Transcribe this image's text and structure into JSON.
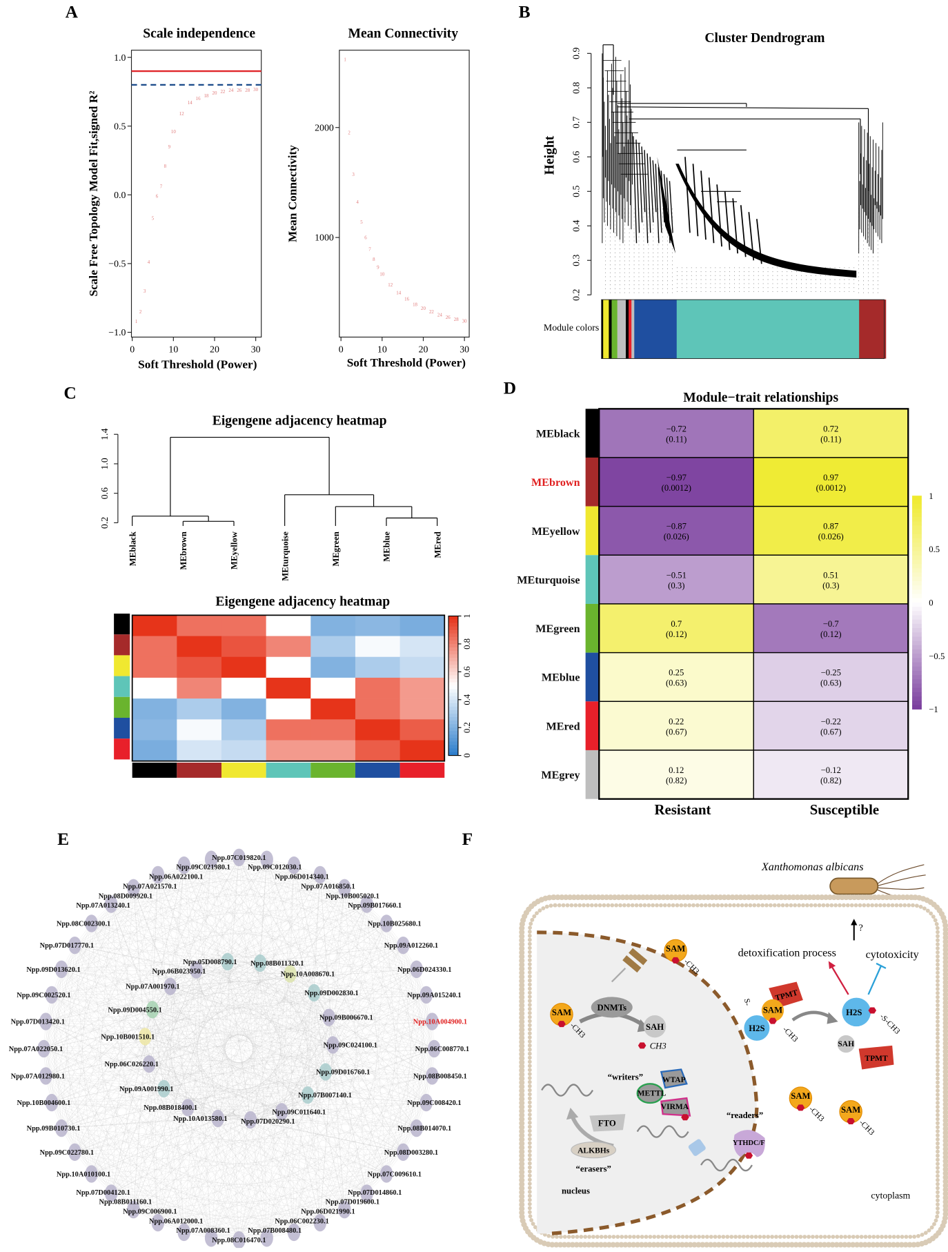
{
  "panel_letters": {
    "a": "A",
    "b": "B",
    "c": "C",
    "d": "D",
    "e": "E",
    "f": "F"
  },
  "chart_data": [
    {
      "id": "scale_independence",
      "type": "scatter",
      "title": "Scale independence",
      "xlabel": "Soft Threshold (Power)",
      "ylabel": "Scale Free Topology Model Fit,signed R²",
      "xlim": [
        0,
        30
      ],
      "ylim": [
        -1.0,
        1.0
      ],
      "xticks": [
        "0",
        "10",
        "20",
        "30"
      ],
      "yticks": [
        "−1.0",
        "−0.5",
        "0.0",
        "0.5",
        "1.0"
      ],
      "x": [
        1,
        2,
        3,
        4,
        5,
        6,
        7,
        8,
        9,
        10,
        12,
        14,
        16,
        18,
        20,
        22,
        24,
        26,
        28,
        30
      ],
      "y": [
        -0.92,
        -0.85,
        -0.7,
        -0.49,
        -0.17,
        -0.01,
        0.06,
        0.21,
        0.35,
        0.46,
        0.59,
        0.67,
        0.7,
        0.72,
        0.74,
        0.75,
        0.76,
        0.76,
        0.76,
        0.765
      ],
      "point_color": "#e07a7a",
      "reference_lines": [
        {
          "value": 0.9,
          "color": "#e0262a",
          "style": "solid"
        },
        {
          "value": 0.8,
          "color": "#1f4e8c",
          "style": "dashed"
        }
      ]
    },
    {
      "id": "mean_connectivity",
      "type": "scatter",
      "title": "Mean Connectivity",
      "xlabel": "Soft Threshold (Power)",
      "ylabel": "Mean Connectivity",
      "xlim": [
        0,
        30
      ],
      "ylim": [
        130,
        2730
      ],
      "xticks": [
        "0",
        "10",
        "20",
        "30"
      ],
      "yticks": [
        "1000",
        "2000"
      ],
      "x": [
        1,
        2,
        3,
        4,
        5,
        6,
        7,
        8,
        9,
        10,
        12,
        14,
        16,
        18,
        20,
        22,
        24,
        26,
        28,
        30
      ],
      "y": [
        2618,
        1954,
        1575,
        1322,
        1139,
        1000,
        892,
        803,
        730,
        668,
        570,
        496,
        440,
        392,
        357,
        326,
        295,
        274,
        257,
        239
      ],
      "point_color": "#e07a7a"
    },
    {
      "id": "eigengene_dendrogram",
      "type": "dendrogram",
      "title": "Eigengene adjacency heatmap",
      "ylim": [
        0.2,
        1.4
      ],
      "yticks": [
        "0.2",
        "0.6",
        "1.0",
        "1.4"
      ],
      "leaves": [
        "MEblack",
        "MEbrown",
        "MEyellow",
        "MEturquoise",
        "MEgreen",
        "MEblue",
        "MEred"
      ],
      "merges": [
        {
          "a": "MEbrown",
          "b": "MEyellow",
          "height": 0.22
        },
        {
          "a": "MEblack",
          "b": 1,
          "height": 0.29
        },
        {
          "a": "MEblue",
          "b": "MEred",
          "height": 0.265
        },
        {
          "a": "MEgreen",
          "b": 3,
          "height": 0.42
        },
        {
          "a": "MEturquoise",
          "b": 4,
          "height": 0.58
        },
        {
          "a": 2,
          "b": 5,
          "height": 1.36
        }
      ]
    },
    {
      "id": "eigengene_heatmap",
      "type": "heatmap",
      "title": "Eigengene adjacency heatmap",
      "modules": [
        "black",
        "brown",
        "yellow",
        "turquoise",
        "green",
        "blue",
        "red"
      ],
      "colorbar_ticks": [
        "0",
        "0.2",
        "0.4",
        "0.6",
        "0.8",
        "1"
      ],
      "scale": {
        "low": "#2f7fcc",
        "mid": "#ffffff",
        "high": "#e6341a"
      },
      "values": [
        [
          1.0,
          0.85,
          0.85,
          0.5,
          0.2,
          0.22,
          0.18
        ],
        [
          0.85,
          1.0,
          0.92,
          0.8,
          0.3,
          0.48,
          0.4
        ],
        [
          0.85,
          0.92,
          1.0,
          0.5,
          0.2,
          0.3,
          0.36
        ],
        [
          0.5,
          0.8,
          0.5,
          1.0,
          0.5,
          0.85,
          0.75
        ],
        [
          0.2,
          0.3,
          0.2,
          0.5,
          1.0,
          0.85,
          0.75
        ],
        [
          0.22,
          0.48,
          0.3,
          0.85,
          0.85,
          1.0,
          0.9
        ],
        [
          0.18,
          0.4,
          0.36,
          0.75,
          0.75,
          0.9,
          1.0
        ]
      ]
    },
    {
      "id": "module_trait",
      "type": "heatmap",
      "title": "Module−trait relationships",
      "columns": [
        "Resistant",
        "Susceptible"
      ],
      "colorbar_ticks": [
        "1",
        "0.5",
        "0",
        "−0.5",
        "−1"
      ],
      "scale": {
        "low": "#7b3f9e",
        "mid": "#ffffff",
        "high": "#efea2e"
      },
      "rows": [
        {
          "name": "MEblack",
          "color": "#000000",
          "highlight": false,
          "values": [
            -0.72,
            0.72
          ],
          "labels": [
            "−0.72",
            "0.72"
          ],
          "p": [
            "(0.11)",
            "(0.11)"
          ]
        },
        {
          "name": "MEbrown",
          "color": "#a52a2a",
          "highlight": true,
          "values": [
            -0.97,
            0.97
          ],
          "labels": [
            "−0.97",
            "0.97"
          ],
          "p": [
            "(0.0012)",
            "(0.0012)"
          ]
        },
        {
          "name": "MEyellow",
          "color": "#f0e830",
          "highlight": false,
          "values": [
            -0.87,
            0.87
          ],
          "labels": [
            "−0.87",
            "0.87"
          ],
          "p": [
            "(0.026)",
            "(0.026)"
          ]
        },
        {
          "name": "MEturquoise",
          "color": "#5ec5b8",
          "highlight": false,
          "values": [
            -0.51,
            0.51
          ],
          "labels": [
            "−0.51",
            "0.51"
          ],
          "p": [
            "(0.3)",
            "(0.3)"
          ]
        },
        {
          "name": "MEgreen",
          "color": "#6ab42e",
          "highlight": false,
          "values": [
            0.7,
            -0.7
          ],
          "labels": [
            "0.7",
            "−0.7"
          ],
          "p": [
            "(0.12)",
            "(0.12)"
          ]
        },
        {
          "name": "MEblue",
          "color": "#1f4fa0",
          "highlight": false,
          "values": [
            0.25,
            -0.25
          ],
          "labels": [
            "0.25",
            "−0.25"
          ],
          "p": [
            "(0.63)",
            "(0.63)"
          ]
        },
        {
          "name": "MEred",
          "color": "#e8202a",
          "highlight": false,
          "values": [
            0.22,
            -0.22
          ],
          "labels": [
            "0.22",
            "−0.22"
          ],
          "p": [
            "(0.67)",
            "(0.67)"
          ]
        },
        {
          "name": "MEgrey",
          "color": "#bebebe",
          "highlight": false,
          "values": [
            0.12,
            -0.12
          ],
          "labels": [
            "0.12",
            "−0.12"
          ],
          "p": [
            "(0.82)",
            "(0.82)"
          ]
        }
      ],
      "highlight_color": "#e02020"
    }
  ],
  "module_colors": {
    "black": "#000000",
    "brown": "#a52a2a",
    "yellow": "#f0e830",
    "turquoise": "#5ec5b8",
    "green": "#6ab42e",
    "blue": "#1f4fa0",
    "red": "#e8202a",
    "grey": "#bebebe"
  },
  "panelB": {
    "title": "Cluster Dendrogram",
    "ylabel": "Height",
    "ylim": [
      0.2,
      0.9
    ],
    "yticks": [
      "0.2",
      "0.3",
      "0.4",
      "0.5",
      "0.6",
      "0.7",
      "0.8",
      "0.9"
    ],
    "module_colors_label": "Module colors",
    "module_bar": [
      {
        "color": "#000000",
        "share": 0.006
      },
      {
        "color": "#f0e830",
        "share": 0.02
      },
      {
        "color": "#000000",
        "share": 0.01
      },
      {
        "color": "#6ab42e",
        "share": 0.02
      },
      {
        "color": "#bebebe",
        "share": 0.03
      },
      {
        "color": "#000000",
        "share": 0.01
      },
      {
        "color": "#e8202a",
        "share": 0.01
      },
      {
        "color": "#bebebe",
        "share": 0.01
      },
      {
        "color": "#1f4fa0",
        "share": 0.15
      },
      {
        "color": "#5ec5b8",
        "share": 0.645
      },
      {
        "color": "#a52a2a",
        "share": 0.094
      }
    ]
  },
  "panelE": {
    "outer_nodes": [
      "Npp.07C019820.1",
      "Npp.09C012030.1",
      "Npp.06D014340.1",
      "Npp.07A016850.1",
      "Npp.10B005020.1",
      "Npp.09B017660.1",
      "Npp.10B025680.1",
      "Npp.09A012260.1",
      "Npp.06D024330.1",
      "Npp.09A015240.1",
      "Npp.10A004900.1",
      "Npp.06C008770.1",
      "Npp.08B008450.1",
      "Npp.09C008420.1",
      "Npp.08B014070.1",
      "Npp.08D003280.1",
      "Npp.07C009610.1",
      "Npp.07D014860.1",
      "Npp.07D019600.1",
      "Npp.06D021990.1",
      "Npp.06C002230.1",
      "Npp.07B008480.1",
      "Npp.08C016470.1",
      "Npp.07A008360.1",
      "Npp.06A012000.1",
      "Npp.09C006900.1",
      "Npp.08B011160.1",
      "Npp.07D004120.1",
      "Npp.10A010100.1",
      "Npp.09C022780.1",
      "Npp.09B010730.1",
      "Npp.10B004600.1",
      "Npp.07A012980.1",
      "Npp.07A022050.1",
      "Npp.07D013420.1",
      "Npp.09C002520.1",
      "Npp.09D013620.1",
      "Npp.07D017770.1",
      "Npp.08C002300.1",
      "Npp.07A013240.1",
      "Npp.08D009920.1",
      "Npp.07A021570.1",
      "Npp.06A022100.1",
      "Npp.09C021980.1"
    ],
    "highlighted_node": "Npp.10A004900.1",
    "highlight_color": "#e02020",
    "outer_node_color": "#b9b4cc",
    "inner_nodes": [
      {
        "id": "Npp.08B011320.1",
        "color": "#a9cccc"
      },
      {
        "id": "Npp.10A008670.1",
        "color": "#dde4ad"
      },
      {
        "id": "Npp.09D002830.1",
        "color": "#a9cccc"
      },
      {
        "id": "Npp.09B006670.1",
        "color": "#b9b4cc"
      },
      {
        "id": "Npp.09C024100.1",
        "color": "#b9b4cc"
      },
      {
        "id": "Npp.09D016760.1",
        "color": "#a9cccc"
      },
      {
        "id": "Npp.07B007140.1",
        "color": "#a9cccc"
      },
      {
        "id": "Npp.09C011640.1",
        "color": "#b9b4cc"
      },
      {
        "id": "Npp.07D020290.1",
        "color": "#b9b4cc"
      },
      {
        "id": "Npp.10A013580.1",
        "color": "#b9b4cc"
      },
      {
        "id": "Npp.08B018400.1",
        "color": "#b9b4cc"
      },
      {
        "id": "Npp.09A001990.1",
        "color": "#a9cccc"
      },
      {
        "id": "Npp.06C026220.1",
        "color": "#b9b4cc"
      },
      {
        "id": "Npp.10B001510.1",
        "color": "#efe8a6"
      },
      {
        "id": "Npp.09D004550.1",
        "color": "#a6d2b2"
      },
      {
        "id": "Npp.07A001970.1",
        "color": "#b9b4cc"
      },
      {
        "id": "Npp.06B023950.1",
        "color": "#b9b4cc"
      },
      {
        "id": "Npp.05D008790.1",
        "color": "#a9cccc"
      }
    ]
  },
  "panelF": {
    "pathogen": "Xanthomonas albicans",
    "question": "?",
    "detox": "detoxification process",
    "cytotox": "cytotoxicity",
    "sam": "SAM",
    "ch3": "CH3",
    "ch3_dash": "-CH3",
    "dnmts": "DNMTs",
    "sah": "SAH",
    "tpmt": "TPMT",
    "h2s": "H2S",
    "s_dash": "S-",
    "s_ch3": "-S-CH3",
    "writers": "“writers”",
    "wtap": "WTAP",
    "mettl": "METTL",
    "virma": "VIRMA",
    "fto": "FTO",
    "alkbhs": "ALKBHs",
    "erasers": "“erasers”",
    "readers": "“readers”",
    "ythdc": "YTHDC/F",
    "nucleus": "nucleus",
    "cytoplasm": "cytoplasm"
  }
}
